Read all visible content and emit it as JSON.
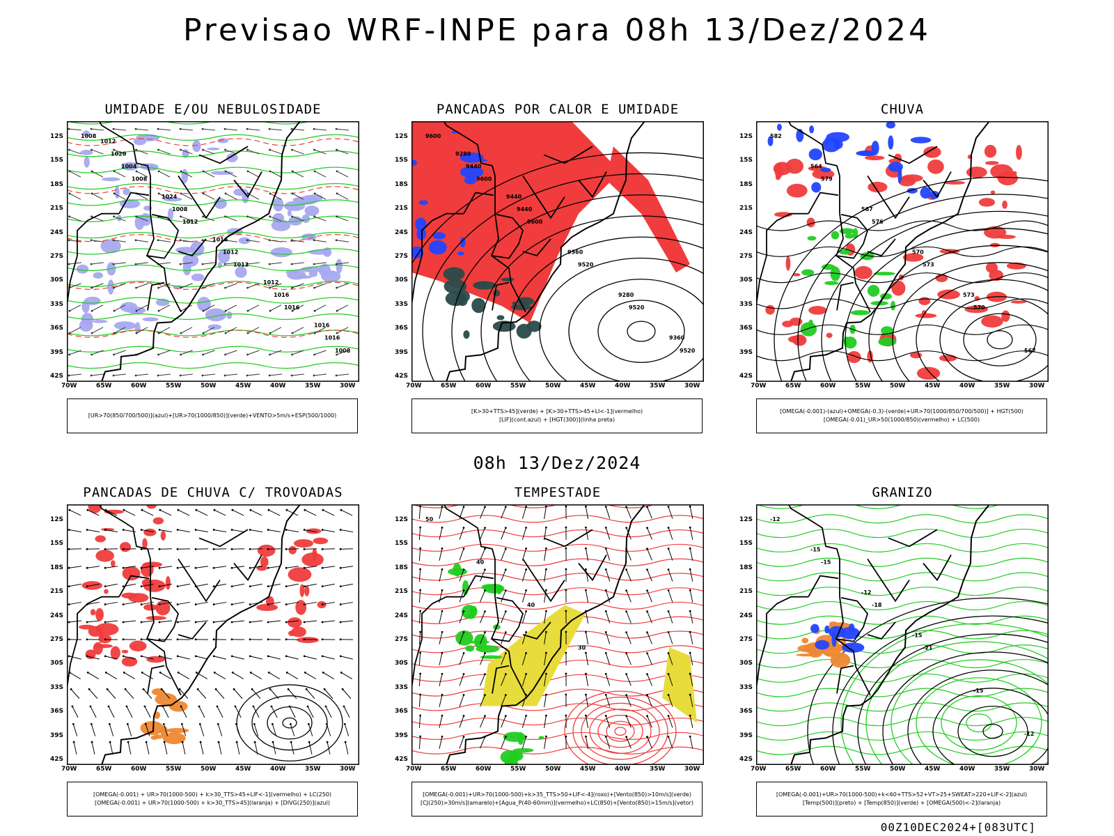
{
  "header": {
    "title": "Previsao WRF-INPE  para 08h 13/Dez/2024",
    "subtitle": "08h 13/Dez/2024",
    "footer": "00Z10DEC2024+[083UTC]"
  },
  "axes": {
    "lat_labels": [
      "12S",
      "15S",
      "18S",
      "21S",
      "24S",
      "27S",
      "30S",
      "33S",
      "36S",
      "39S",
      "42S"
    ],
    "lon_labels": [
      "70W",
      "65W",
      "60W",
      "55W",
      "50W",
      "45W",
      "40W",
      "35W",
      "30W"
    ]
  },
  "colors": {
    "red": "#f03c3c",
    "green": "#22cc22",
    "blue": "#2244ff",
    "lavender": "#a8a8f0",
    "yellow": "#e8dc3c",
    "orange": "#ee8833",
    "darkgreen": "#2a4a4a",
    "black": "#000000"
  },
  "panels": [
    {
      "title": "UMIDADE E/OU NEBULOSIDADE",
      "legend": [
        "[UR>70(850/700/500)](azul)+[UR>70(1000/850)](verde)+VENTO>5m/s+ESP(500/1000)"
      ],
      "contour_labels": [
        "1008",
        "1008",
        "1012",
        "1012",
        "1016",
        "1008",
        "1004",
        "1008",
        "1012",
        "1016",
        "1016",
        "1020",
        "1024",
        "1016",
        "1012",
        "1016",
        "1012"
      ]
    },
    {
      "title": "PANCADAS POR CALOR E UMIDADE",
      "legend": [
        "[K>30+TTS>45](verde) + [K>30+TTS>45+LI<-1](vermelho)",
        "[LIF](cont.azul) + [HGT(300)](linha preta)"
      ],
      "contour_labels": [
        "9600",
        "9600",
        "9600",
        "9520",
        "9520",
        "9520",
        "9440",
        "9440",
        "9360",
        "9280",
        "9360",
        "9280",
        "9440"
      ]
    },
    {
      "title": "CHUVA",
      "legend": [
        "[OMEGA(-0.001)-(azul)+OMEGA(-0.3)-(verde)+UR>70(1000/850/700/500)] + HGT(500)",
        "[OMEGA(-0.01)_UR>50(1000/850)(vermelho) + LC(500)"
      ],
      "contour_labels": [
        "582",
        "579",
        "576",
        "573",
        "570",
        "567",
        "564",
        "567",
        "570",
        "573"
      ]
    },
    {
      "title": "PANCADAS DE CHUVA C/ TROVOADAS",
      "legend": [
        "[OMEGA(-0.001) + UR>70(1000-500) + k>30_TTS>45+LIF<-1](vermelho) + LC(250)",
        "[OMEGA(-0.001) + UR>70(1000-500) + k>30_TTS>45](laranja) + [DIVG(250)](azul)"
      ],
      "contour_labels": []
    },
    {
      "title": "TEMPESTADE",
      "legend": [
        "[OMEGA(-0.001)+UR>70(1000-500)+k>35_TTS>50+LIF<-4](roxo)+[Vento(850)>10m/s](verde)",
        "[CJ(250)>30m/s](amarelo)+[Agua_P(40-60mm)](vermelho)+LC(850)+[Vento(850)>15m/s](vetor)"
      ],
      "contour_labels": [
        "50",
        "40",
        "40",
        "30"
      ]
    },
    {
      "title": "GRANIZO",
      "legend": [
        "[OMEGA(-0.001)+UR>70(1000-500)+k<60+TTS>52+VT>25+SWEAT>220+LIF<-2](azul)",
        "[Temp(500)](preto) + [Temp(850)](verde) + [OMEGA(500)<-2](laranja)"
      ],
      "contour_labels": [
        "-12",
        "-15",
        "-18",
        "-21",
        "-15",
        "-12",
        "-15",
        "-12",
        "-15"
      ]
    }
  ]
}
